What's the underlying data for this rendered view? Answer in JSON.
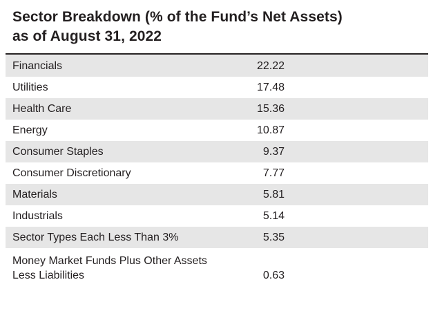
{
  "title": {
    "line1": "Sector Breakdown (% of the Fund’s Net Assets)",
    "line2": "as of August 31, 2022"
  },
  "rows": [
    {
      "label": "Financials",
      "value": "22.22"
    },
    {
      "label": "Utilities",
      "value": "17.48"
    },
    {
      "label": "Health Care",
      "value": "15.36"
    },
    {
      "label": "Energy",
      "value": "10.87"
    },
    {
      "label": "Consumer Staples",
      "value": "9.37"
    },
    {
      "label": "Consumer Discretionary",
      "value": "7.77"
    },
    {
      "label": "Materials",
      "value": "5.81"
    },
    {
      "label": "Industrials",
      "value": "5.14"
    },
    {
      "label": "Sector Types Each Less Than 3%",
      "value": "5.35"
    },
    {
      "label_line1": "Money Market Funds Plus Other Assets",
      "label_line2": "Less Liabilities",
      "value": "0.63"
    }
  ],
  "colors": {
    "text": "#231f20",
    "shaded_row": "#e6e6e6",
    "rule": "#231f20"
  }
}
